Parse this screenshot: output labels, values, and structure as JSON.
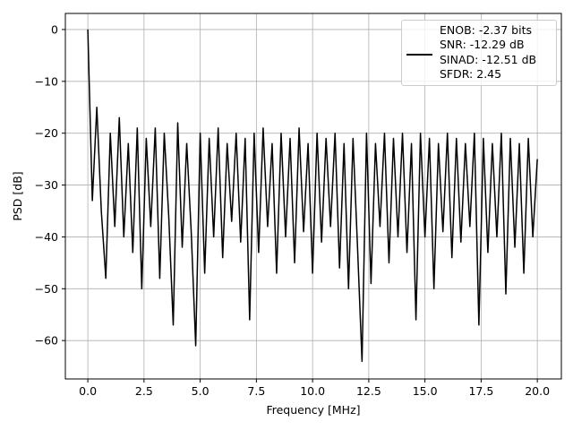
{
  "chart_data": {
    "type": "line",
    "xlabel": "Frequency [MHz]",
    "ylabel": "PSD [dB]",
    "x": [
      0,
      0.2,
      0.4,
      0.6,
      0.8,
      1.0,
      1.2,
      1.4,
      1.6,
      1.8,
      2.0,
      2.2,
      2.4,
      2.6,
      2.8,
      3.0,
      3.2,
      3.4,
      3.6,
      3.8,
      4.0,
      4.2,
      4.4,
      4.6,
      4.8,
      5.0,
      5.2,
      5.4,
      5.6,
      5.8,
      6.0,
      6.2,
      6.4,
      6.6,
      6.8,
      7.0,
      7.2,
      7.4,
      7.6,
      7.8,
      8.0,
      8.2,
      8.4,
      8.6,
      8.8,
      9.0,
      9.2,
      9.4,
      9.6,
      9.8,
      10.0,
      10.2,
      10.4,
      10.6,
      10.8,
      11.0,
      11.2,
      11.4,
      11.6,
      11.8,
      12.0,
      12.2,
      12.4,
      12.6,
      12.8,
      13.0,
      13.2,
      13.4,
      13.6,
      13.8,
      14.0,
      14.2,
      14.4,
      14.6,
      14.8,
      15.0,
      15.2,
      15.4,
      15.6,
      15.8,
      16.0,
      16.2,
      16.4,
      16.6,
      16.8,
      17.0,
      17.2,
      17.4,
      17.6,
      17.8,
      18.0,
      18.2,
      18.4,
      18.6,
      18.8,
      19.0,
      19.2,
      19.4,
      19.6,
      19.8,
      20.0
    ],
    "series": [
      {
        "name": "ENOB: -2.37 bits\nSNR: -12.29 dB\nSINAD: -12.51 dB\nSFDR: 2.45",
        "color": "#000000",
        "values": [
          0,
          -33,
          -15,
          -35,
          -48,
          -20,
          -38,
          -17,
          -40,
          -22,
          -43,
          -19,
          -50,
          -21,
          -38,
          -19,
          -48,
          -20,
          -36,
          -57,
          -18,
          -42,
          -22,
          -39,
          -61,
          -20,
          -47,
          -21,
          -40,
          -19,
          -44,
          -22,
          -37,
          -20,
          -41,
          -21,
          -56,
          -20,
          -43,
          -19,
          -38,
          -22,
          -47,
          -20,
          -40,
          -21,
          -45,
          -19,
          -39,
          -22,
          -47,
          -20,
          -41,
          -21,
          -38,
          -20,
          -46,
          -22,
          -50,
          -21,
          -42,
          -64,
          -20,
          -49,
          -22,
          -38,
          -20,
          -45,
          -21,
          -40,
          -20,
          -43,
          -22,
          -56,
          -20,
          -40,
          -21,
          -50,
          -22,
          -39,
          -20,
          -44,
          -21,
          -41,
          -22,
          -38,
          -20,
          -57,
          -21,
          -43,
          -22,
          -40,
          -20,
          -51,
          -21,
          -42,
          -22,
          -47,
          -21,
          -40,
          -25
        ]
      }
    ],
    "xlim": [
      -1.0,
      21.07
    ],
    "xticks": [
      {
        "value": 0,
        "label": "0.0"
      },
      {
        "value": 2.5,
        "label": "2.5"
      },
      {
        "value": 5,
        "label": "5.0"
      },
      {
        "value": 7.5,
        "label": "7.5"
      },
      {
        "value": 10,
        "label": "10.0"
      },
      {
        "value": 12.5,
        "label": "12.5"
      },
      {
        "value": 15,
        "label": "15.0"
      },
      {
        "value": 17.5,
        "label": "17.5"
      },
      {
        "value": 20,
        "label": "20.0"
      }
    ],
    "ylim": [
      -67.4,
      3.1
    ],
    "yticks": [
      0,
      {
        "value": -10,
        "label": "−10"
      },
      {
        "value": -20,
        "label": "−20"
      },
      {
        "value": -30,
        "label": "−30"
      },
      {
        "value": -40,
        "label": "−40"
      },
      {
        "value": -50,
        "label": "−50"
      },
      {
        "value": -60,
        "label": "−60"
      }
    ],
    "grid": true,
    "legend": "upper right"
  }
}
